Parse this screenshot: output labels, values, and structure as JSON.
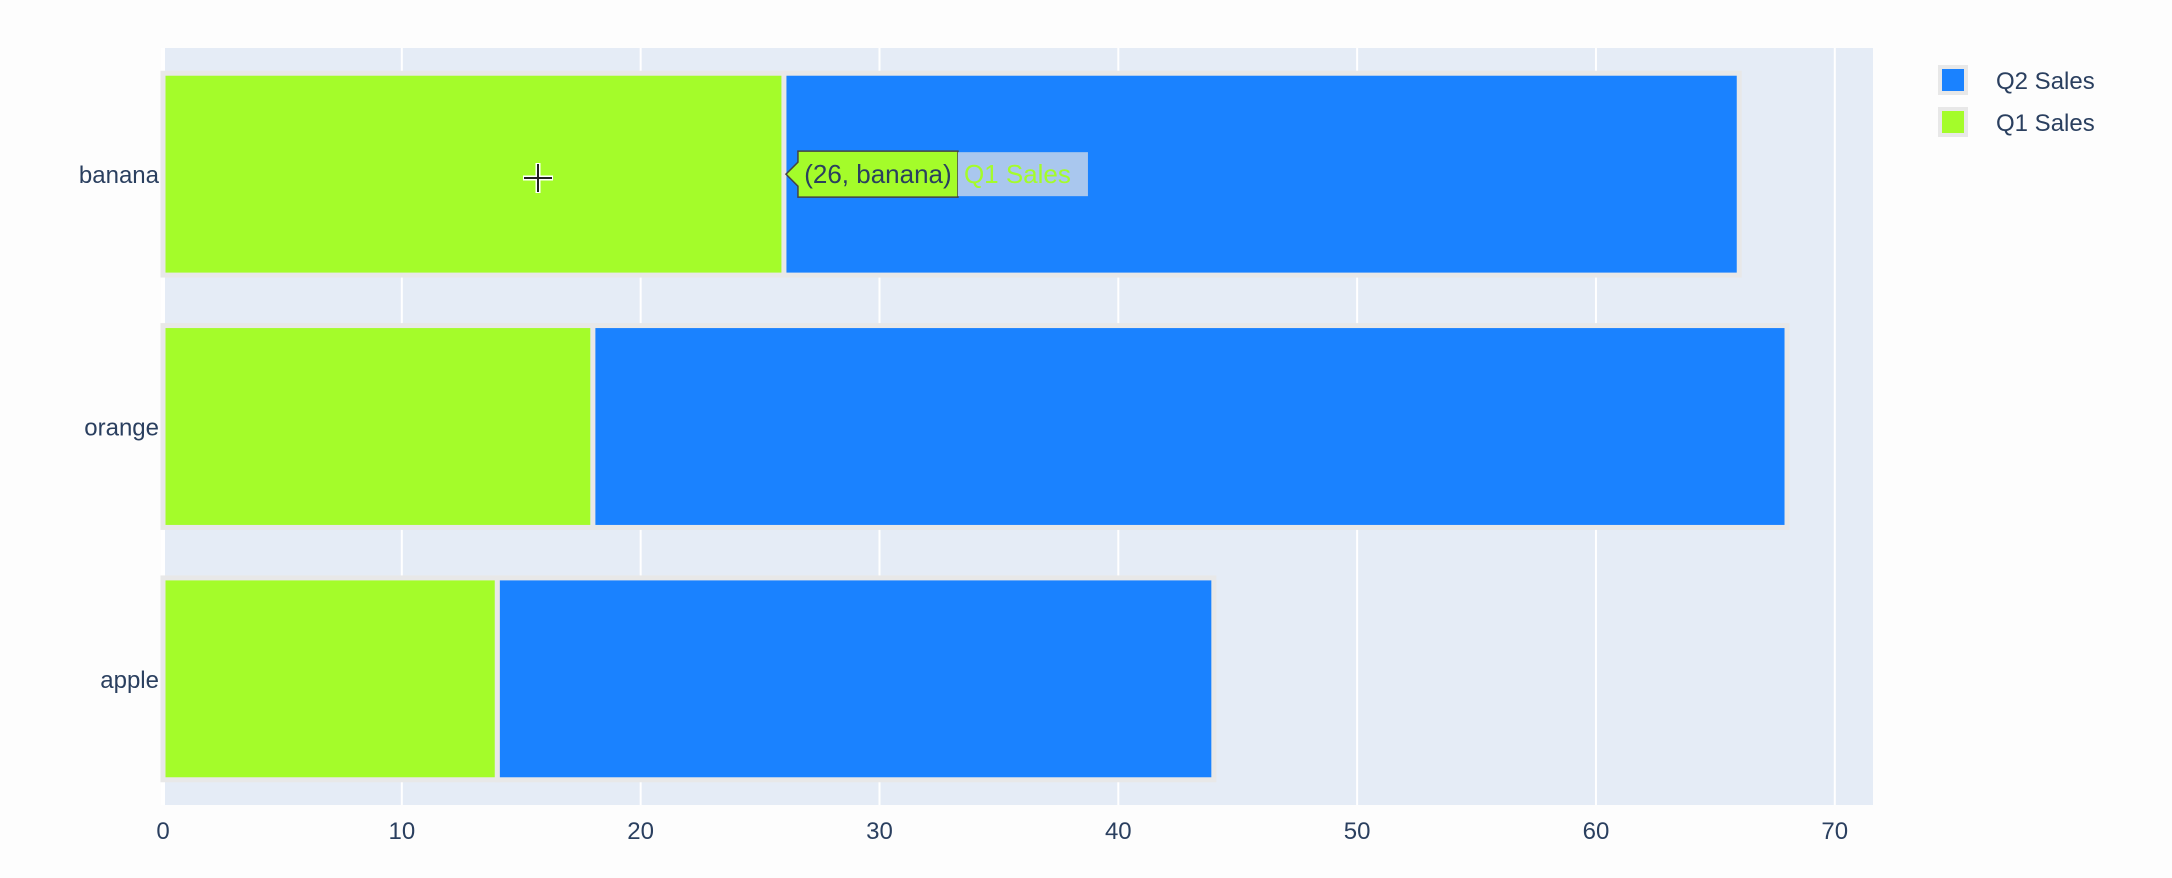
{
  "chart_data": {
    "type": "bar",
    "orientation": "horizontal",
    "barmode": "stack",
    "categories": [
      "apple",
      "orange",
      "banana"
    ],
    "series": [
      {
        "name": "Q1 Sales",
        "values": [
          14,
          18,
          26
        ],
        "color": "#a4fc2a"
      },
      {
        "name": "Q2 Sales",
        "values": [
          30,
          50,
          40
        ],
        "color": "#1a82ff"
      }
    ],
    "title": "",
    "xlabel": "",
    "ylabel": "",
    "xlim": [
      0,
      71.6
    ],
    "x_ticks": [
      0,
      10,
      20,
      30,
      40,
      50,
      60,
      70
    ],
    "grid": true,
    "legend": {
      "position": "top-right",
      "order": [
        "Q2 Sales",
        "Q1 Sales"
      ]
    },
    "hover": {
      "category": "banana",
      "series": "Q1 Sales",
      "label": "(26, banana)",
      "series_label": "Q1 Sales"
    },
    "colors": {
      "plot_background": "#e5ecf6",
      "page_background": "#fdfdfd",
      "grid": "#ffffff",
      "text": "#2a3f5f"
    }
  }
}
